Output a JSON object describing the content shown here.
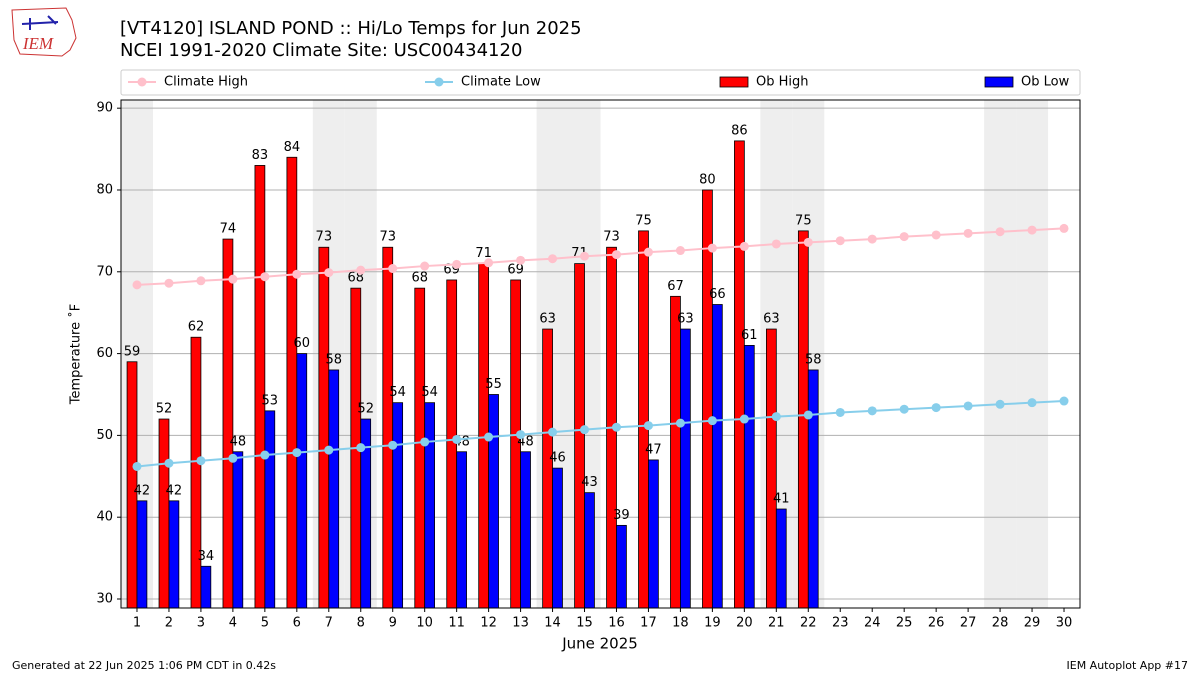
{
  "logo": "IEM",
  "footer_left": "Generated at 22 Jun 2025 1:06 PM CDT in 0.42s",
  "footer_right": "IEM Autoplot App #17",
  "chart_data": {
    "type": "bar",
    "title": [
      "[VT4120] ISLAND POND :: Hi/Lo Temps for Jun 2025",
      "NCEI 1991-2020 Climate Site: USC00434120"
    ],
    "xlabel": "June 2025",
    "ylabel": "Temperature ˚F",
    "x": [
      1,
      2,
      3,
      4,
      5,
      6,
      7,
      8,
      9,
      10,
      11,
      12,
      13,
      14,
      15,
      16,
      17,
      18,
      19,
      20,
      21,
      22,
      23,
      24,
      25,
      26,
      27,
      28,
      29,
      30
    ],
    "xlim": [
      0.5,
      30.5
    ],
    "xticks": [
      1,
      2,
      3,
      4,
      5,
      6,
      7,
      8,
      9,
      10,
      11,
      12,
      13,
      14,
      15,
      16,
      17,
      18,
      19,
      20,
      21,
      22,
      23,
      24,
      25,
      26,
      27,
      28,
      29,
      30
    ],
    "ylim": [
      28.9,
      91
    ],
    "yticks": [
      30,
      40,
      50,
      60,
      70,
      80,
      90
    ],
    "grid": true,
    "shaded_days": [
      1,
      7,
      8,
      14,
      15,
      21,
      22,
      28,
      29
    ],
    "series": [
      {
        "name": "Climate High",
        "type": "line",
        "color": "#ffc0cb",
        "values": [
          68.4,
          68.6,
          68.9,
          69.1,
          69.4,
          69.7,
          69.9,
          70.2,
          70.4,
          70.7,
          70.9,
          71.1,
          71.4,
          71.6,
          71.9,
          72.1,
          72.4,
          72.6,
          72.9,
          73.1,
          73.4,
          73.6,
          73.8,
          74.0,
          74.3,
          74.5,
          74.7,
          74.9,
          75.1,
          75.3
        ]
      },
      {
        "name": "Climate Low",
        "type": "line",
        "color": "#87ceeb",
        "values": [
          46.2,
          46.6,
          46.9,
          47.2,
          47.6,
          47.9,
          48.2,
          48.5,
          48.8,
          49.2,
          49.5,
          49.8,
          50.1,
          50.4,
          50.7,
          51.0,
          51.2,
          51.5,
          51.8,
          52.0,
          52.3,
          52.5,
          52.8,
          53.0,
          53.2,
          53.4,
          53.6,
          53.8,
          54.0,
          54.2
        ]
      },
      {
        "name": "Ob High",
        "type": "bar",
        "color": "#ff0000",
        "values": [
          59,
          52,
          62,
          74,
          83,
          84,
          73,
          68,
          73,
          68,
          69,
          71,
          69,
          63,
          71,
          73,
          75,
          67,
          80,
          86,
          63,
          75,
          null,
          null,
          null,
          null,
          null,
          null,
          null,
          null
        ]
      },
      {
        "name": "Ob Low",
        "type": "bar",
        "color": "#0000ff",
        "values": [
          42,
          42,
          34,
          48,
          53,
          60,
          58,
          52,
          54,
          54,
          48,
          55,
          48,
          46,
          43,
          39,
          47,
          63,
          66,
          61,
          41,
          58,
          null,
          null,
          null,
          null,
          null,
          null,
          null,
          null
        ]
      }
    ]
  }
}
